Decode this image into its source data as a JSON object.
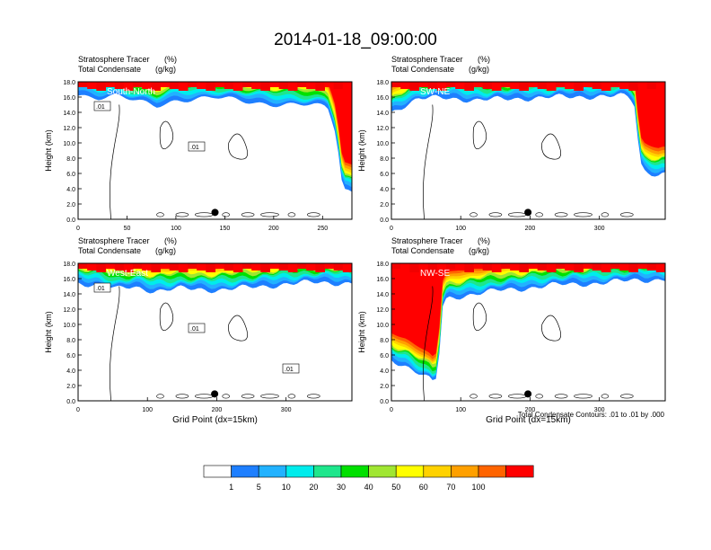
{
  "figure": {
    "title": "2014-01-18_09:00:00",
    "footnote": "Total Condensate Contours: .01 to .01 by .000"
  },
  "colors": {
    "levels": [
      "#ffffff",
      "#1e7fff",
      "#22b2ff",
      "#00ecec",
      "#1ee68c",
      "#00e000",
      "#a0e632",
      "#ffff00",
      "#ffd200",
      "#ffa000",
      "#ff6400",
      "#ff0000"
    ]
  },
  "colorbar": {
    "labels": [
      "1",
      "5",
      "10",
      "20",
      "30",
      "40",
      "50",
      "60",
      "70",
      "100"
    ]
  },
  "chart_data": [
    {
      "type": "heatmap",
      "panel": "south-north",
      "label": "South-North",
      "var1": "Stratosphere Tracer",
      "var1_units": "(%)",
      "var2": "Total Condensate",
      "var2_units": "(g/kg)",
      "xlabel": "",
      "ylabel": "Height (km)",
      "xlim": [
        0,
        280
      ],
      "ylim": [
        0,
        18
      ],
      "xticks": [
        "0",
        "50",
        "100",
        "150",
        "200",
        "250"
      ],
      "yticks": [
        "0.0",
        "2.0",
        "4.0",
        "6.0",
        "8.0",
        "10.0",
        "12.0",
        "14.0",
        "16.0",
        "18.0"
      ],
      "contour_labels": [
        ".01",
        ".01"
      ],
      "tropopause_km": [
        [
          0,
          16.3
        ],
        [
          20,
          16.0
        ],
        [
          40,
          16.2
        ],
        [
          60,
          15.4
        ],
        [
          80,
          14.8
        ],
        [
          100,
          15.6
        ],
        [
          120,
          15.8
        ],
        [
          140,
          15.9
        ],
        [
          160,
          15.6
        ],
        [
          180,
          15.3
        ],
        [
          200,
          15.1
        ],
        [
          220,
          15.0
        ],
        [
          240,
          14.9
        ],
        [
          255,
          14.6
        ],
        [
          262,
          12.2
        ],
        [
          266,
          9.0
        ],
        [
          268,
          6.0
        ],
        [
          272,
          4.0
        ],
        [
          280,
          3.6
        ]
      ],
      "marker_x": 140
    },
    {
      "type": "heatmap",
      "panel": "sw-ne",
      "label": "SW-NE",
      "var1": "Stratosphere Tracer",
      "var1_units": "(%)",
      "var2": "Total Condensate",
      "var2_units": "(g/kg)",
      "xlabel": "",
      "ylabel": "Height (km)",
      "xlim": [
        0,
        395
      ],
      "ylim": [
        0,
        18
      ],
      "xticks": [
        "0",
        "100",
        "200",
        "300"
      ],
      "yticks": [
        "0.0",
        "2.0",
        "4.0",
        "6.0",
        "8.0",
        "10.0",
        "12.0",
        "14.0",
        "16.0",
        "18.0"
      ],
      "contour_labels": [],
      "tropopause_km": [
        [
          0,
          14.0
        ],
        [
          20,
          15.0
        ],
        [
          40,
          15.8
        ],
        [
          80,
          15.9
        ],
        [
          120,
          15.6
        ],
        [
          180,
          15.8
        ],
        [
          240,
          16.0
        ],
        [
          300,
          16.1
        ],
        [
          340,
          16.1
        ],
        [
          350,
          15.4
        ],
        [
          355,
          11.0
        ],
        [
          358,
          8.0
        ],
        [
          362,
          6.6
        ],
        [
          372,
          6.2
        ],
        [
          385,
          5.8
        ],
        [
          395,
          6.0
        ]
      ],
      "marker_x": 197
    },
    {
      "type": "heatmap",
      "panel": "west-east",
      "label": "West-East",
      "var1": "Stratosphere Tracer",
      "var1_units": "(%)",
      "var2": "Total Condensate",
      "var2_units": "(g/kg)",
      "xlabel": "Grid Point (dx=15km)",
      "ylabel": "Height (km)",
      "xlim": [
        0,
        395
      ],
      "ylim": [
        0,
        18
      ],
      "xticks": [
        "0",
        "100",
        "200",
        "300"
      ],
      "yticks": [
        "0.0",
        "2.0",
        "4.0",
        "6.0",
        "8.0",
        "10.0",
        "12.0",
        "14.0",
        "16.0",
        "18.0"
      ],
      "contour_labels": [
        ".01",
        ".01",
        ".01"
      ],
      "tropopause_km": [
        [
          0,
          15.4
        ],
        [
          30,
          15.2
        ],
        [
          55,
          14.6
        ],
        [
          80,
          14.9
        ],
        [
          110,
          14.4
        ],
        [
          150,
          14.7
        ],
        [
          200,
          14.5
        ],
        [
          240,
          14.8
        ],
        [
          270,
          15.0
        ],
        [
          300,
          15.3
        ],
        [
          340,
          15.5
        ],
        [
          395,
          15.4
        ]
      ],
      "marker_x": 197
    },
    {
      "type": "heatmap",
      "panel": "nw-se",
      "label": "NW-SE",
      "var1": "Stratosphere Tracer",
      "var1_units": "(%)",
      "var2": "Total Condensate",
      "var2_units": "(g/kg)",
      "xlabel": "Grid Point (dx=15km)",
      "ylabel": "Height (km)",
      "xlim": [
        0,
        395
      ],
      "ylim": [
        0,
        18
      ],
      "xticks": [
        "0",
        "100",
        "200",
        "300"
      ],
      "yticks": [
        "0.0",
        "2.0",
        "4.0",
        "6.0",
        "8.0",
        "10.0",
        "12.0",
        "14.0",
        "16.0",
        "18.0"
      ],
      "contour_labels": [],
      "tropopause_km": [
        [
          0,
          5.4
        ],
        [
          20,
          4.6
        ],
        [
          40,
          3.6
        ],
        [
          55,
          2.8
        ],
        [
          62,
          2.2
        ],
        [
          68,
          4.0
        ],
        [
          72,
          12.0
        ],
        [
          80,
          13.4
        ],
        [
          120,
          14.0
        ],
        [
          160,
          14.5
        ],
        [
          200,
          14.8
        ],
        [
          240,
          15.2
        ],
        [
          300,
          15.4
        ],
        [
          350,
          15.8
        ],
        [
          395,
          15.9
        ]
      ],
      "marker_x": 197
    }
  ]
}
